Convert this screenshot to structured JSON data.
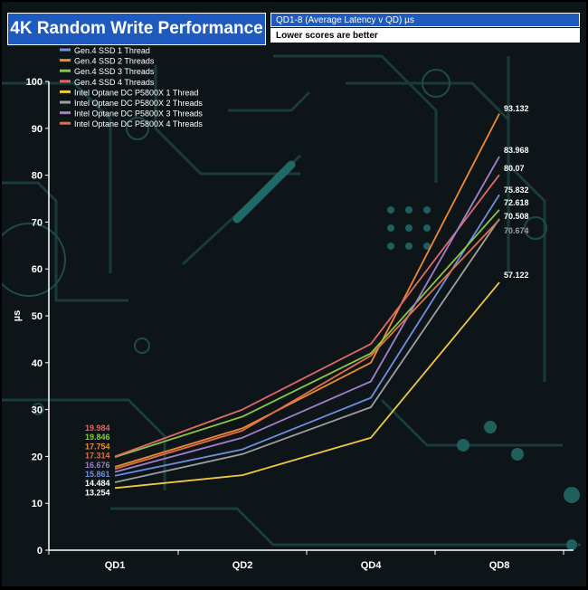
{
  "header": {
    "title": "4K Random Write Performance",
    "subtitle": "QD1-8 (Average Latency v QD)  µs",
    "note": "Lower scores are better"
  },
  "chart_data": {
    "type": "line",
    "categories": [
      "QD1",
      "QD2",
      "QD4",
      "QD8"
    ],
    "ylabel": "µs",
    "ylim": [
      0,
      100
    ],
    "yticks": [
      0,
      10,
      20,
      30,
      40,
      50,
      60,
      70,
      80,
      90,
      100
    ],
    "grid": false,
    "legend_position": "top-left",
    "series": [
      {
        "name": "Gen.4 SSD 1 Thread",
        "color": "#6f8fe0",
        "values": [
          15.861,
          21.5,
          32.5,
          75.832
        ]
      },
      {
        "name": "Gen.4 SSD 2 Threads",
        "color": "#f08a30",
        "values": [
          17.754,
          26.0,
          40.0,
          93.132
        ]
      },
      {
        "name": "Gen.4 SSD 3 Threads",
        "color": "#8cc840",
        "values": [
          19.846,
          28.5,
          42.0,
          72.618
        ]
      },
      {
        "name": "Gen.4 SSD 4 Threads",
        "color": "#e06868",
        "values": [
          19.984,
          30.0,
          44.0,
          80.07
        ]
      },
      {
        "name": "Intel Optane DC P5800X 1 Thread",
        "color": "#f0c840",
        "values": [
          13.254,
          16.0,
          24.0,
          57.122
        ]
      },
      {
        "name": "Intel Optane DC P5800X 2 Threads",
        "color": "#a0a0a0",
        "values": [
          14.484,
          20.5,
          30.5,
          70.674
        ]
      },
      {
        "name": "Intel Optane DC P5800X 3 Threads",
        "color": "#a080c8",
        "values": [
          16.676,
          24.0,
          36.0,
          83.968
        ]
      },
      {
        "name": "Intel Optane DC P5800X 4 Threads",
        "color": "#e0704a",
        "values": [
          17.314,
          25.5,
          41.5,
          70.508
        ]
      }
    ],
    "data_labels": {
      "QD1": [
        {
          "text": "19.984",
          "color": "#e06868"
        },
        {
          "text": "19.846",
          "color": "#8cc840"
        },
        {
          "text": "17.754",
          "color": "#f08a30"
        },
        {
          "text": "17.314",
          "color": "#e0704a"
        },
        {
          "text": "16.676",
          "color": "#a080c8"
        },
        {
          "text": "15.861",
          "color": "#6f8fe0"
        },
        {
          "text": "14.484",
          "color": "#ffffff"
        },
        {
          "text": "13.254",
          "color": "#ffffff"
        }
      ],
      "QD8": [
        {
          "text": "93.132",
          "color": "#ffffff",
          "value": 93.132
        },
        {
          "text": "83.968",
          "color": "#ffffff",
          "value": 83.968
        },
        {
          "text": "80.07",
          "color": "#ffffff",
          "value": 80.07
        },
        {
          "text": "75.832",
          "color": "#ffffff",
          "value": 75.832
        },
        {
          "text": "72.618",
          "color": "#ffffff",
          "value": 72.618
        },
        {
          "text": "70.508",
          "color": "#ffffff",
          "value": 70.508
        },
        {
          "text": "70.674",
          "color": "#a0a0a0",
          "value": 70.674
        },
        {
          "text": "57.122",
          "color": "#ffffff",
          "value": 57.122
        }
      ]
    }
  }
}
